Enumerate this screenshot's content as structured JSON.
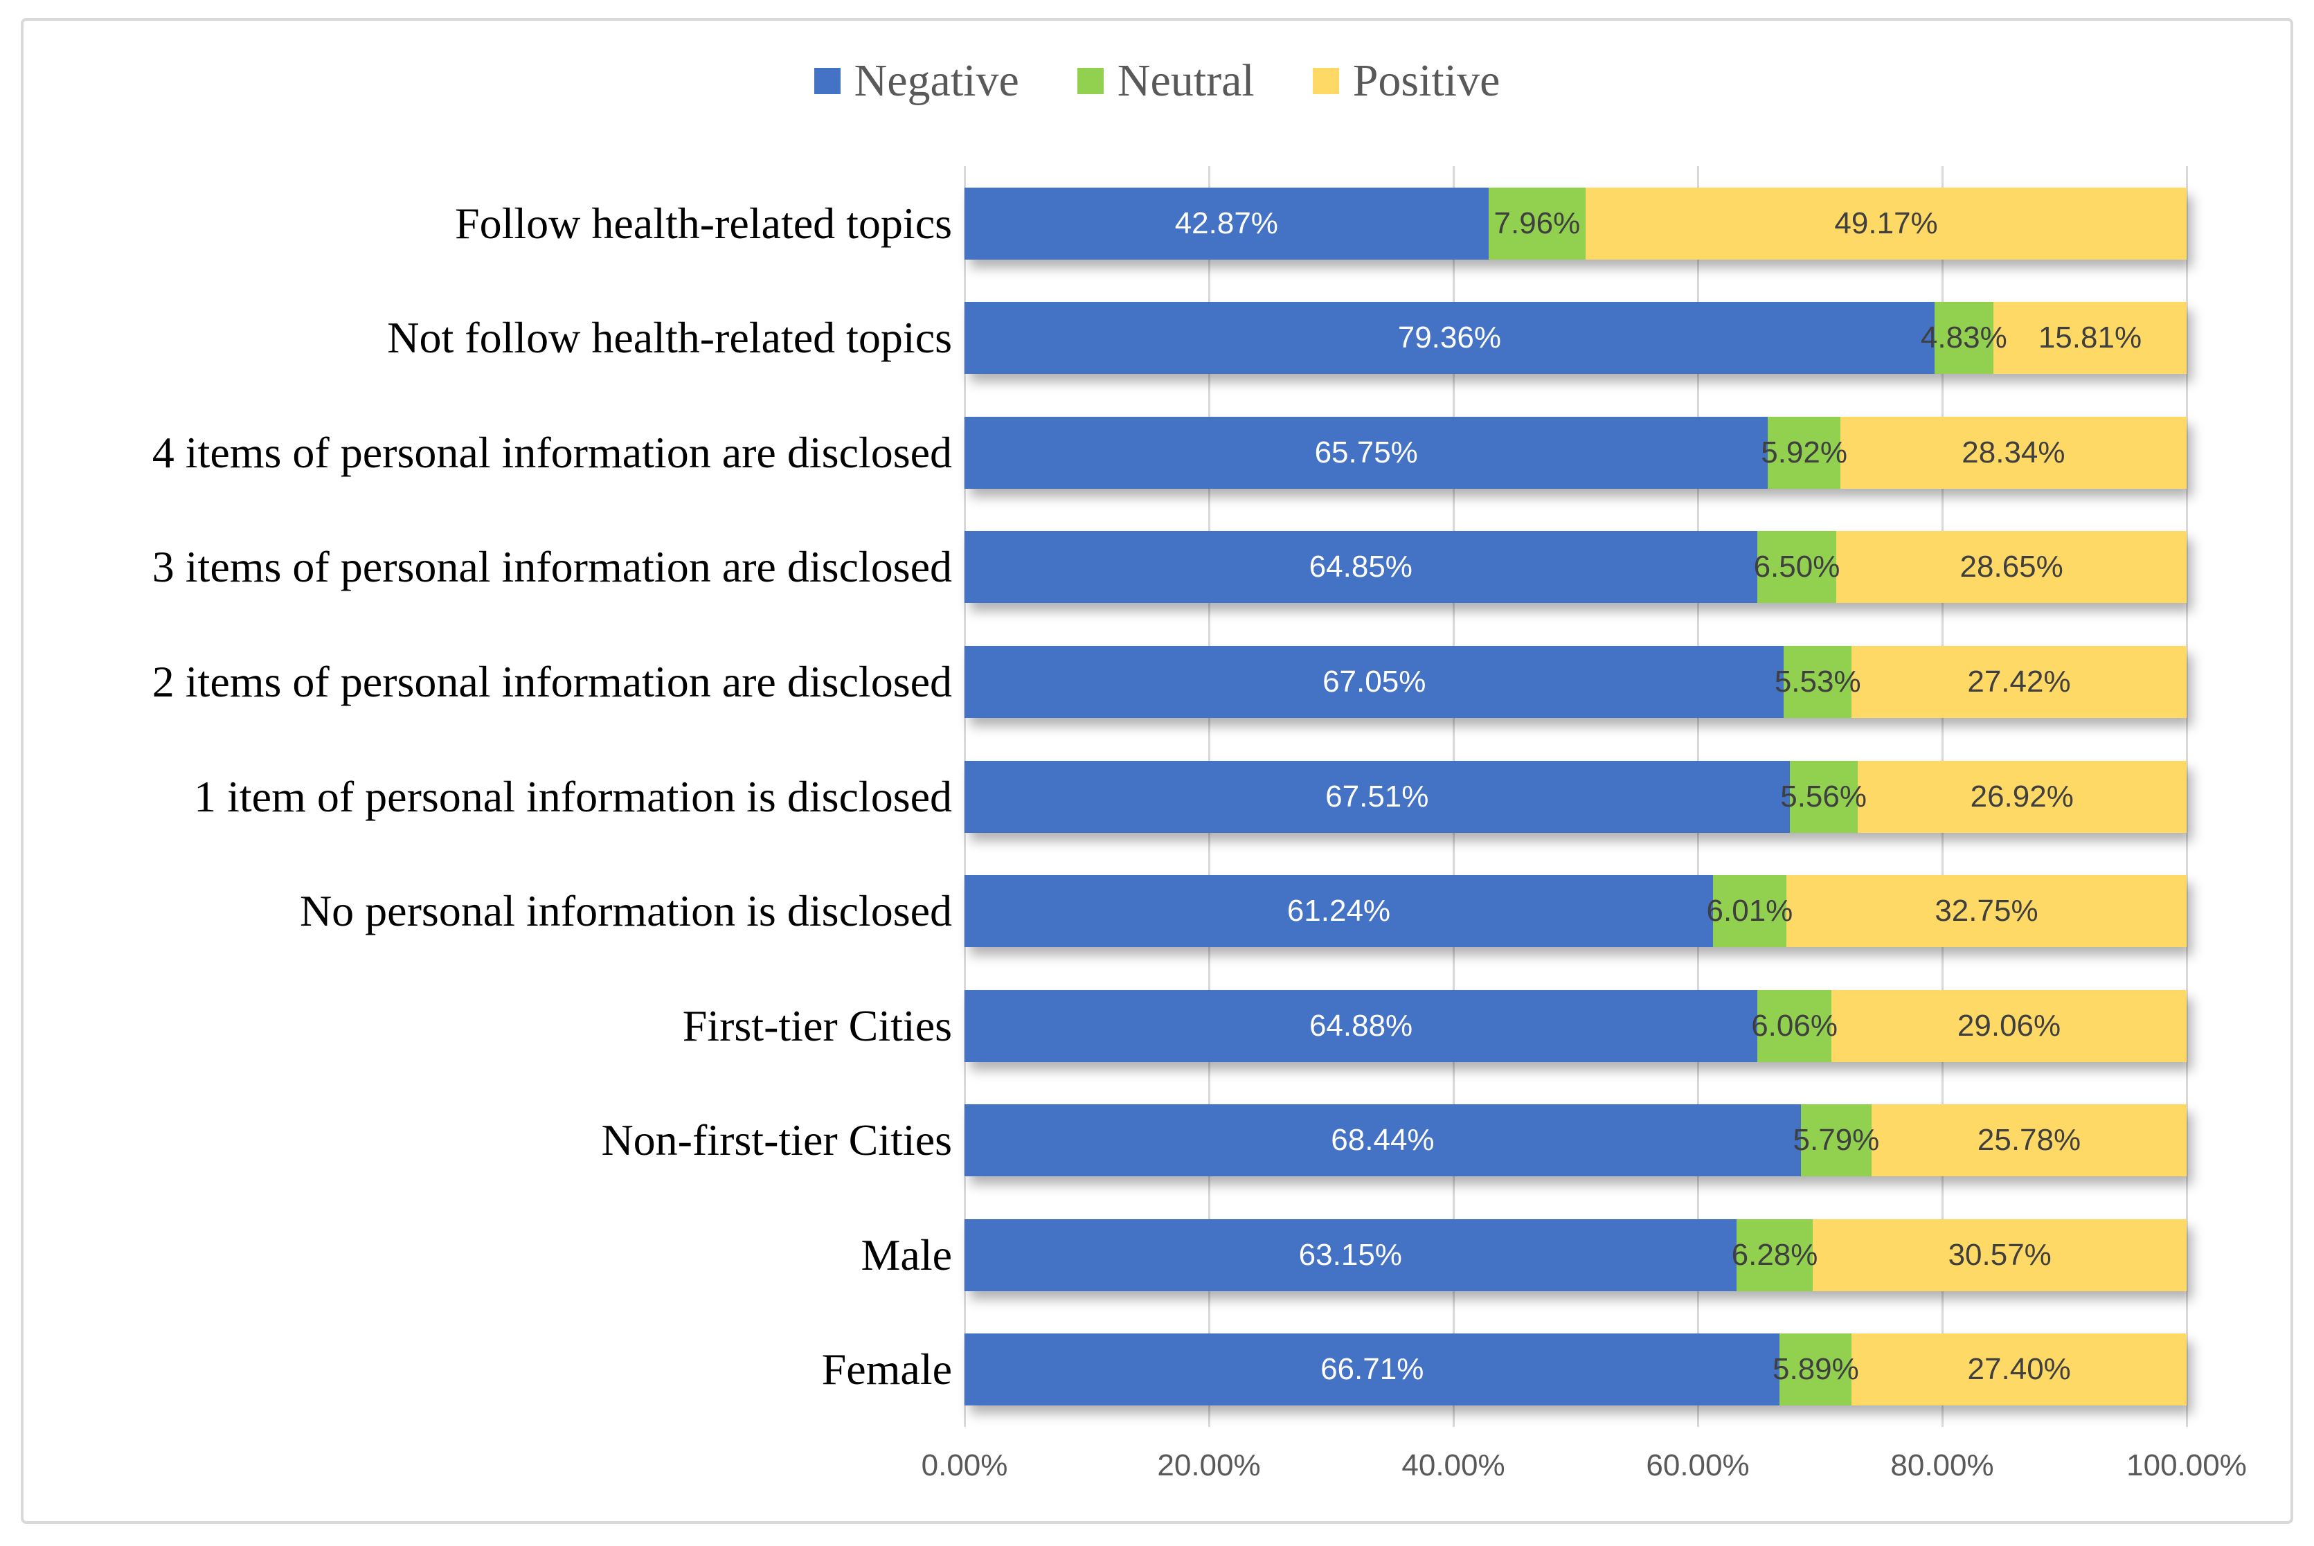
{
  "figure": {
    "background": "#FFFFFF",
    "border_color": "#D9D9D9"
  },
  "legend": {
    "position": "top-center",
    "text_color": "#595959",
    "items": [
      {
        "label": "Negative",
        "color": "#4472C4"
      },
      {
        "label": "Neutral",
        "color": "#92D050"
      },
      {
        "label": "Positive",
        "color": "#FFD966"
      }
    ]
  },
  "chart_data": {
    "type": "bar",
    "orientation": "horizontal",
    "stacked": true,
    "unit": "%",
    "xlim": [
      0,
      100
    ],
    "grid": true,
    "gridline_color": "#D9D9D9",
    "legend_position": "top",
    "axis_text_color": "#595959",
    "x_ticks": [
      "0.00%",
      "20.00%",
      "40.00%",
      "60.00%",
      "80.00%",
      "100.00%"
    ],
    "categories": [
      "Follow health-related topics",
      "Not follow health-related topics",
      "4 items of personal information are disclosed",
      "3 items of personal information are disclosed",
      "2 items of personal information are disclosed",
      "1 item of personal information is disclosed",
      "No personal information is disclosed",
      "First-tier Cities",
      "Non-first-tier Cities",
      "Male",
      "Female"
    ],
    "series": [
      {
        "name": "Negative",
        "color": "#4472C4",
        "label_color": "#FFFFFF",
        "values": [
          42.87,
          79.36,
          65.75,
          64.85,
          67.05,
          67.51,
          61.24,
          64.88,
          68.44,
          63.15,
          66.71
        ],
        "labels": [
          "42.87%",
          "79.36%",
          "65.75%",
          "64.85%",
          "67.05%",
          "67.51%",
          "61.24%",
          "64.88%",
          "68.44%",
          "63.15%",
          "66.71%"
        ]
      },
      {
        "name": "Neutral",
        "color": "#92D050",
        "label_color": "#3F3F3F",
        "values": [
          7.96,
          4.83,
          5.92,
          6.5,
          5.53,
          5.56,
          6.01,
          6.06,
          5.79,
          6.28,
          5.89
        ],
        "labels": [
          "7.96%",
          "4.83%",
          "5.92%",
          "6.50%",
          "5.53%",
          "5.56%",
          "6.01%",
          "6.06%",
          "5.79%",
          "6.28%",
          "5.89%"
        ]
      },
      {
        "name": "Positive",
        "color": "#FFD966",
        "label_color": "#3F3F3F",
        "values": [
          49.17,
          15.81,
          28.34,
          28.65,
          27.42,
          26.92,
          32.75,
          29.06,
          25.78,
          30.57,
          27.4
        ],
        "labels": [
          "49.17%",
          "15.81%",
          "28.34%",
          "28.65%",
          "27.42%",
          "26.92%",
          "32.75%",
          "29.06%",
          "25.78%",
          "30.57%",
          "27.40%"
        ]
      }
    ]
  }
}
